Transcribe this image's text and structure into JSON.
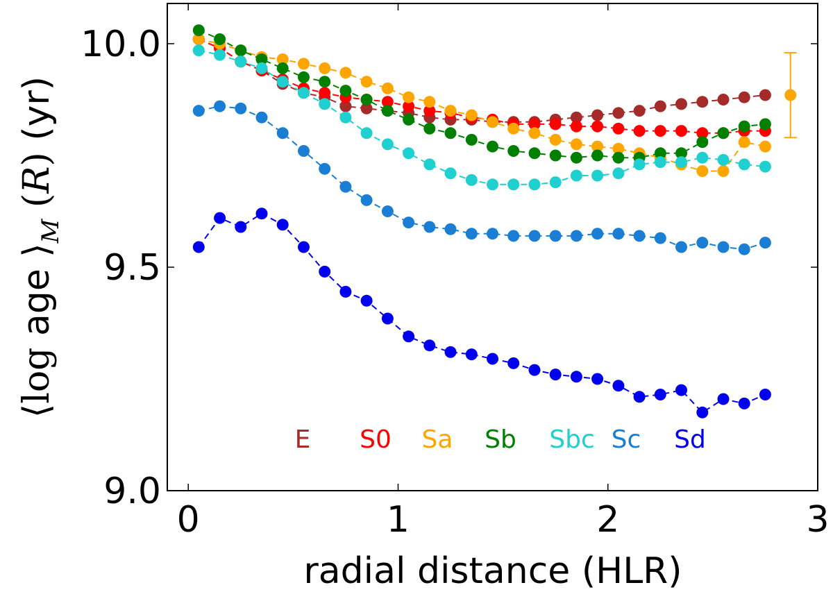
{
  "chart_data": {
    "type": "line",
    "title": "",
    "xlabel": "radial distance (HLR)",
    "ylabel": {
      "open": "⟨",
      "log": "log",
      "age": " age ",
      "close": "⟩",
      "sub": "M",
      "paren_open": " (",
      "R": "R",
      "paren_close": ")",
      "unit": " (yr)"
    },
    "xlim": [
      -0.1,
      3.0
    ],
    "ylim": [
      9.0,
      10.09
    ],
    "xticks": [
      0,
      1,
      2,
      3
    ],
    "xtick_labels": [
      "0",
      "1",
      "2",
      "3"
    ],
    "yticks": [
      9.0,
      9.5,
      10.0
    ],
    "ytick_labels": [
      "9.0",
      "9.5",
      "10.0"
    ],
    "grid": false,
    "legend_placement": "bottom-center",
    "x": [
      0.05,
      0.15,
      0.25,
      0.35,
      0.45,
      0.55,
      0.65,
      0.75,
      0.85,
      0.95,
      1.05,
      1.15,
      1.25,
      1.35,
      1.45,
      1.55,
      1.65,
      1.75,
      1.85,
      1.95,
      2.05,
      2.15,
      2.25,
      2.35,
      2.45,
      2.55,
      2.65,
      2.75
    ],
    "series": [
      {
        "name": "E",
        "color": "#a52a2a",
        "values": [
          10.01,
          9.99,
          9.96,
          9.94,
          9.91,
          9.89,
          9.88,
          9.86,
          9.855,
          9.85,
          9.845,
          9.835,
          9.83,
          9.83,
          9.825,
          9.825,
          9.825,
          9.83,
          9.835,
          9.84,
          9.845,
          9.85,
          9.86,
          9.865,
          9.87,
          9.875,
          9.88,
          9.885
        ]
      },
      {
        "name": "S0",
        "color": "#ff0000",
        "values": [
          10.01,
          9.99,
          9.96,
          9.94,
          9.92,
          9.9,
          9.89,
          9.88,
          9.875,
          9.87,
          9.86,
          9.85,
          9.845,
          9.835,
          9.83,
          9.82,
          9.82,
          9.82,
          9.815,
          9.815,
          9.81,
          9.805,
          9.805,
          9.805,
          9.8,
          9.8,
          9.805,
          9.805
        ]
      },
      {
        "name": "Sa",
        "color": "#ffa500",
        "values": [
          10.01,
          10.0,
          9.985,
          9.97,
          9.965,
          9.955,
          9.945,
          9.935,
          9.915,
          9.9,
          9.88,
          9.87,
          9.85,
          9.84,
          9.825,
          9.81,
          9.8,
          9.785,
          9.775,
          9.77,
          9.765,
          9.755,
          9.745,
          9.73,
          9.715,
          9.715,
          9.78,
          9.77
        ]
      },
      {
        "name": "Sb",
        "color": "#008000",
        "values": [
          10.03,
          10.01,
          9.985,
          9.965,
          9.945,
          9.925,
          9.915,
          9.895,
          9.875,
          9.85,
          9.83,
          9.81,
          9.8,
          9.785,
          9.77,
          9.76,
          9.755,
          9.75,
          9.745,
          9.75,
          9.745,
          9.745,
          9.755,
          9.755,
          9.78,
          9.8,
          9.815,
          9.82
        ]
      },
      {
        "name": "Sbc",
        "color": "#20cfcf",
        "values": [
          9.985,
          9.975,
          9.96,
          9.945,
          9.915,
          9.89,
          9.865,
          9.835,
          9.8,
          9.775,
          9.755,
          9.73,
          9.71,
          9.695,
          9.685,
          9.685,
          9.685,
          9.69,
          9.705,
          9.705,
          9.71,
          9.73,
          9.735,
          9.735,
          9.745,
          9.74,
          9.73,
          9.725
        ]
      },
      {
        "name": "Sc",
        "color": "#1a7fd4",
        "values": [
          9.85,
          9.86,
          9.855,
          9.835,
          9.8,
          9.76,
          9.72,
          9.68,
          9.65,
          9.625,
          9.6,
          9.59,
          9.585,
          9.575,
          9.575,
          9.57,
          9.57,
          9.57,
          9.57,
          9.575,
          9.575,
          9.57,
          9.565,
          9.545,
          9.555,
          9.545,
          9.54,
          9.555
        ]
      },
      {
        "name": "Sd",
        "color": "#0000ee",
        "values": [
          9.545,
          9.61,
          9.59,
          9.62,
          9.595,
          9.545,
          9.49,
          9.445,
          9.425,
          9.385,
          9.345,
          9.325,
          9.31,
          9.305,
          9.295,
          9.285,
          9.27,
          9.26,
          9.255,
          9.25,
          9.235,
          9.21,
          9.215,
          9.225,
          9.175,
          9.205,
          9.195,
          9.215
        ]
      }
    ],
    "error_bar": {
      "x": 2.87,
      "y": 9.885,
      "yerr": 0.095,
      "color": "#ffa500"
    }
  }
}
